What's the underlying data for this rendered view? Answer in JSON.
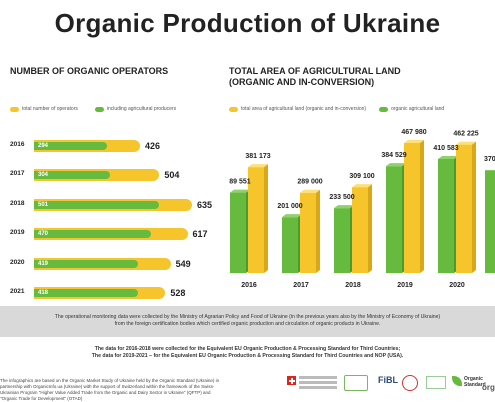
{
  "page_title": "Organic Production of Ukraine",
  "colors": {
    "green": "#66bb3f",
    "green_dark": "#4e9a2c",
    "yellow": "#f6c52c",
    "yellow_dark": "#d9a81a"
  },
  "operators": {
    "title": "NUMBER OF ORGANIC OPERATORS",
    "legend": {
      "total": "total number of operators",
      "agri": "including agricultural producers"
    }
  },
  "land": {
    "title_line1": "TOTAL AREA OF AGRICULTURAL LAND",
    "title_line2": "(ORGANIC AND IN-CONVERSION)",
    "legend": {
      "total": "total area of agricultural land (organic and in-conversion)",
      "organic": "organic agricultural land"
    }
  },
  "chart_data": [
    {
      "type": "bar",
      "orientation": "horizontal",
      "title": "NUMBER OF ORGANIC OPERATORS",
      "categories": [
        "2016",
        "2017",
        "2018",
        "2019",
        "2020",
        "2021"
      ],
      "series": [
        {
          "name": "total number of operators",
          "values": [
            426,
            504,
            635,
            617,
            549,
            528
          ],
          "labels": [
            "426",
            "504",
            "635",
            "617",
            "549",
            "528"
          ]
        },
        {
          "name": "including agricultural producers",
          "values": [
            294,
            304,
            501,
            470,
            419,
            418
          ],
          "labels": [
            "294",
            "304",
            "501",
            "470",
            "419",
            "418"
          ]
        }
      ],
      "xlim": [
        0,
        635
      ]
    },
    {
      "type": "bar",
      "orientation": "vertical",
      "title": "TOTAL AREA OF AGRICULTURAL LAND (ORGANIC AND IN-CONVERSION)",
      "categories": [
        "2016",
        "2017",
        "2018",
        "2019",
        "2020"
      ],
      "series": [
        {
          "name": "organic agricultural land",
          "values": [
            289551,
            201000,
            233500,
            384529,
            410583
          ],
          "labels": [
            "289 551",
            "201 000",
            "233 500",
            "384 529",
            "410 583"
          ]
        },
        {
          "name": "total area of agricultural land (organic and in-conversion)",
          "values": [
            381173,
            289000,
            309100,
            467980,
            462225
          ],
          "labels": [
            "381 173",
            "289 000",
            "309 100",
            "467 980",
            "462 225"
          ]
        }
      ],
      "partial_label": "370 1",
      "ylim": [
        0,
        467980
      ]
    }
  ],
  "notes": {
    "band_line1": "The operational monitoring data were collected by the Ministry of Agrarian Policy and Food of Ukraine (in the previous years also by the Ministry of Economy of Ukraine)",
    "band_line2": "from the foreign certification bodies which certified organic production and circulation of organic products in Ukraine.",
    "data_line1": "The data for 2016-2018 were collected for the Equivalent EU Organic Production & Processing Standard for Third Countries;",
    "data_line2": "The data for 2019-2021 – for the Equivalent EU Organic Production & Processing Standard for Third Countries and NOP (USA)."
  },
  "footer": {
    "text": "The infographics are based on the Organic Market Study of Ukraine held by the Organic Standard (Ukraine) in partnership with OrganicInfo.ua (Ukraine) with the support of Switzerland within the framework of the Swiss-Ukrainian Program \"Higher Value Added Trade from the Organic and Dairy Sector in Ukraine\" (QFTP) and \"Organic Trade for Development\" (OTAD)",
    "logo_fibl": "FiBL",
    "logo_os": "Organic Standard",
    "logo_partial": "orga"
  }
}
